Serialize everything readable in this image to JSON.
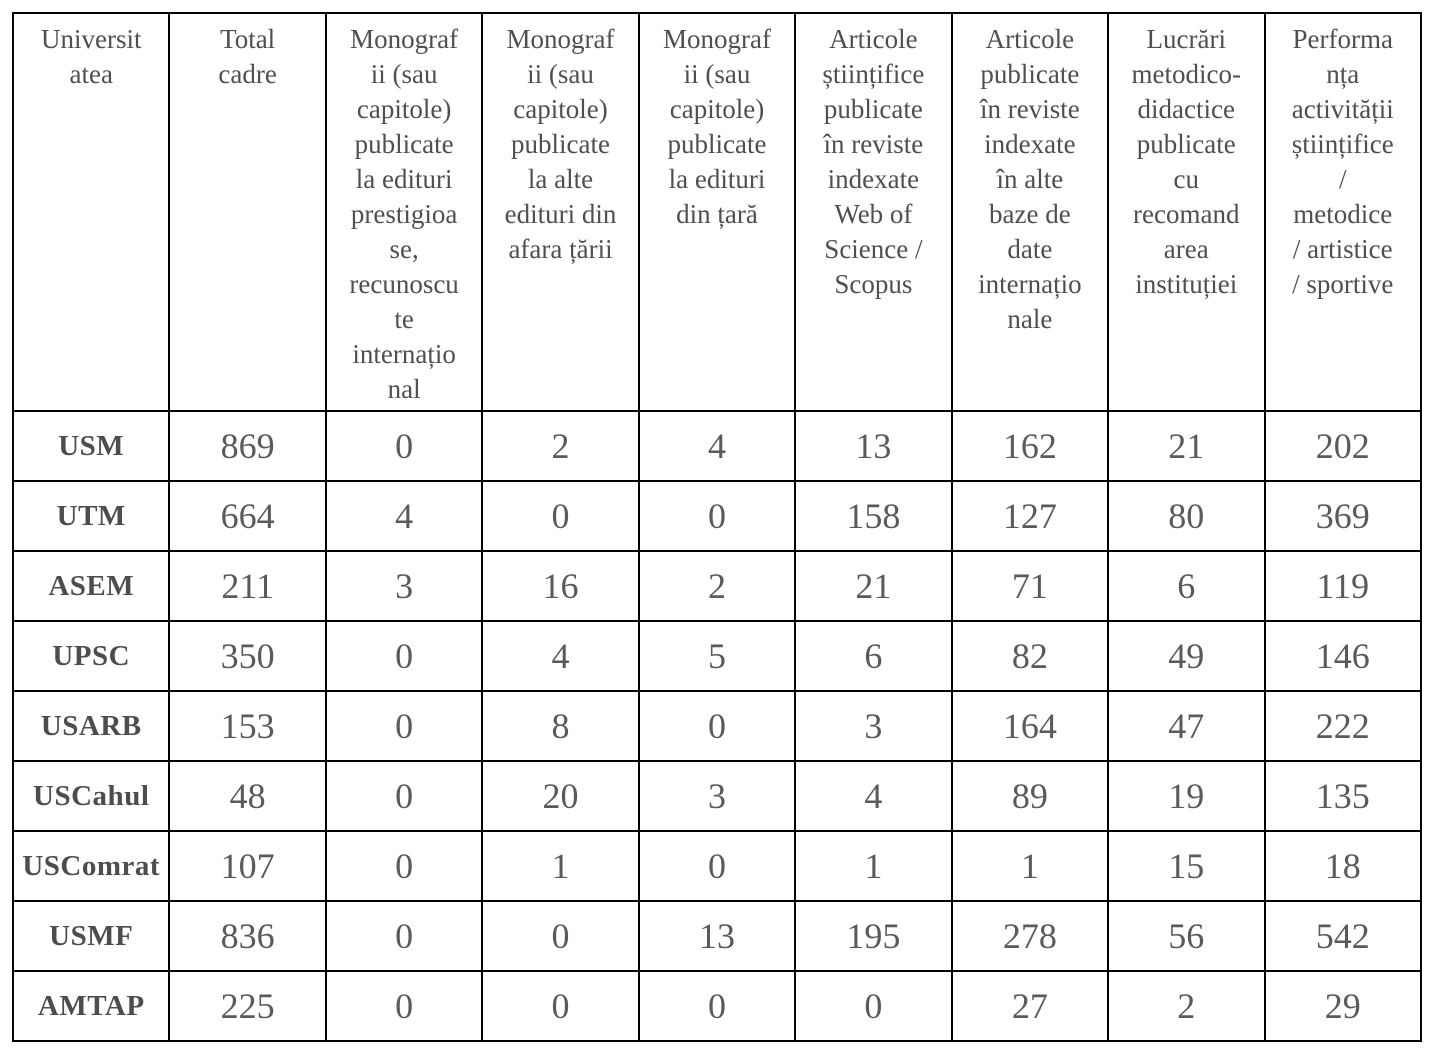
{
  "colors": {
    "border": "#000000",
    "header_text": "#4f4f4f",
    "cell_text": "#5a5a5a",
    "row_label_text": "#4d4d4d",
    "background": "#ffffff"
  },
  "table": {
    "headers": [
      {
        "text": "Universit\natea"
      },
      {
        "text": "Total\ncadre"
      },
      {
        "text": "Monograf\nii (sau\ncapitole)\npublicate\nla edituri\nprestigioa\nse,\nrecunoscu\nte\ninternațio\nnal"
      },
      {
        "text": "Monograf\nii (sau\ncapitole)\npublicate\nla alte\nedituri din\nafara țării"
      },
      {
        "text": "Monograf\nii (sau\ncapitole)\npublicate\nla edituri\ndin țară"
      },
      {
        "text": "Articole\nștiințifice\npublicate\nîn reviste\nindexate\nWeb of\nScience /\nScopus"
      },
      {
        "text": "Articole\npublicate\nîn reviste\nindexate\nîn alte\nbaze de\ndate\ninternațio\nnale"
      },
      {
        "text": "Lucrări\nmetodico-\ndidactice\npublicate\ncu\nrecomand\narea\ninstituției"
      },
      {
        "text": "Performa\nnța\nactivității\nștiințifice\n/\nmetodice\n/ artistice\n/ sportive"
      }
    ],
    "rows": [
      {
        "label": "USM",
        "values": [
          869,
          0,
          2,
          4,
          13,
          162,
          21,
          202
        ]
      },
      {
        "label": "UTM",
        "values": [
          664,
          4,
          0,
          0,
          158,
          127,
          80,
          369
        ]
      },
      {
        "label": "ASEM",
        "values": [
          211,
          3,
          16,
          2,
          21,
          71,
          6,
          119
        ]
      },
      {
        "label": "UPSC",
        "values": [
          350,
          0,
          4,
          5,
          6,
          82,
          49,
          146
        ]
      },
      {
        "label": "USARB",
        "values": [
          153,
          0,
          8,
          0,
          3,
          164,
          47,
          222
        ]
      },
      {
        "label": "USCahul",
        "values": [
          48,
          0,
          20,
          3,
          4,
          89,
          19,
          135
        ]
      },
      {
        "label": "USComrat",
        "values": [
          107,
          0,
          1,
          0,
          1,
          1,
          15,
          18
        ]
      },
      {
        "label": "USMF",
        "values": [
          836,
          0,
          0,
          13,
          195,
          278,
          56,
          542
        ]
      },
      {
        "label": "AMTAP",
        "values": [
          225,
          0,
          0,
          0,
          0,
          27,
          2,
          29
        ]
      }
    ]
  }
}
